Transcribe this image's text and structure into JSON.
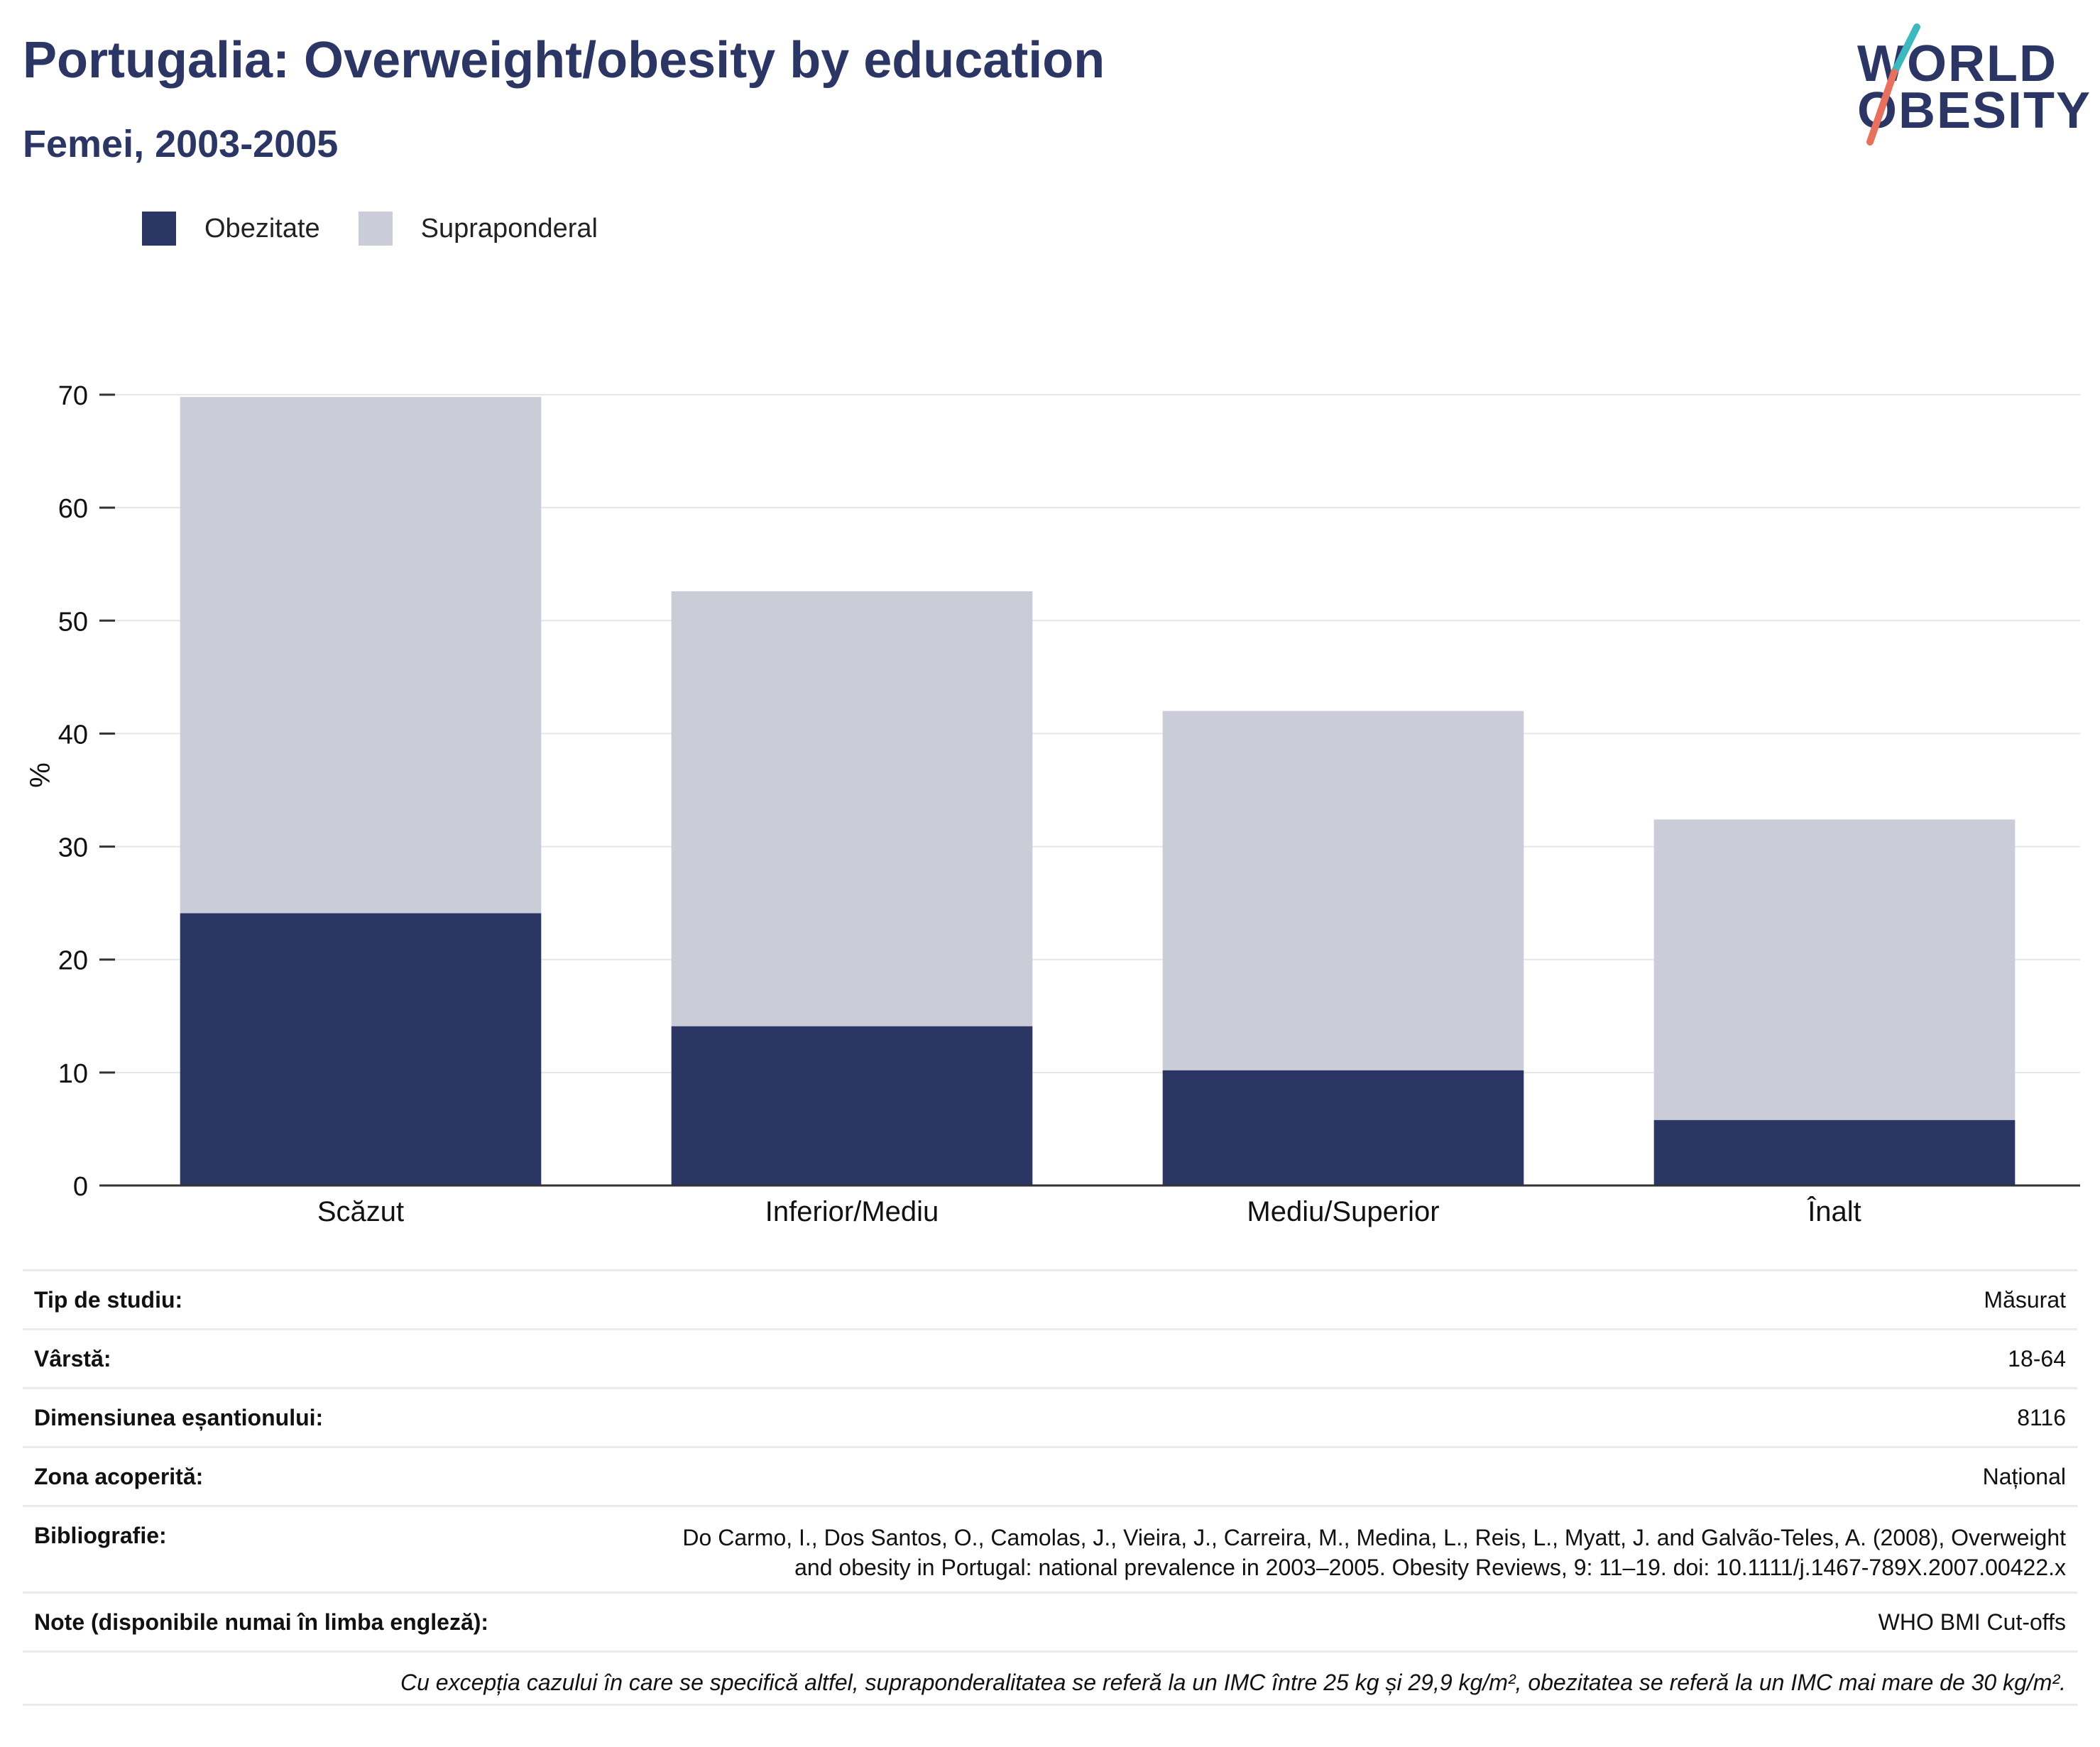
{
  "header": {
    "title": "Portugalia: Overweight/obesity by education",
    "subtitle": "Femei, 2003-2005"
  },
  "logo": {
    "line1": "WORLD",
    "line2": "OBESITY",
    "colors": {
      "teal": "#3fb7be",
      "coral": "#e8705f"
    }
  },
  "legend": [
    {
      "label": "Obezitate",
      "color": "#2b3664"
    },
    {
      "label": "Supraponderal",
      "color": "#cacdd8"
    }
  ],
  "chart_data": {
    "type": "bar",
    "stacked": true,
    "categories": [
      "Scăzut",
      "Inferior/Mediu",
      "Mediu/Superior",
      "Înalt"
    ],
    "series": [
      {
        "name": "Obezitate",
        "color": "#2b3664",
        "values": [
          24.1,
          14.1,
          10.2,
          5.8
        ]
      },
      {
        "name": "Supraponderal",
        "color": "#cacdd8",
        "values": [
          45.7,
          38.5,
          31.8,
          26.6
        ]
      }
    ],
    "ylabel": "%",
    "ylim": [
      0,
      70
    ],
    "yticks": [
      "0",
      "10",
      "20",
      "30",
      "40",
      "50",
      "60",
      "70"
    ],
    "grid": true,
    "legend_position": "top-left"
  },
  "info": [
    {
      "label": "Tip de studiu:",
      "value": "Măsurat"
    },
    {
      "label": "Vârstă:",
      "value": "18-64"
    },
    {
      "label": "Dimensiunea eșantionului:",
      "value": "8116"
    },
    {
      "label": "Zona acoperită:",
      "value": "Național"
    },
    {
      "label": "Bibliografie:",
      "value_line1": "Do Carmo, I., Dos Santos, O., Camolas, J., Vieira, J., Carreira, M., Medina, L., Reis, L., Myatt, J. and Galvão-Teles, A. (2008), Overweight",
      "value_line2": "and obesity in Portugal: national prevalence in 2003–2005. Obesity Reviews, 9: 11–19. doi: 10.1111/j.1467-789X.2007.00422.x"
    },
    {
      "label": "Note (disponibile numai în limba engleză):",
      "value": "WHO BMI Cut-offs"
    }
  ],
  "footnote": "Cu excepția cazului în care se specifică altfel, supraponderalitatea se referă la un IMC între 25 kg și 29,9 kg/m², obezitatea se referă la un IMC mai mare de 30 kg/m²."
}
